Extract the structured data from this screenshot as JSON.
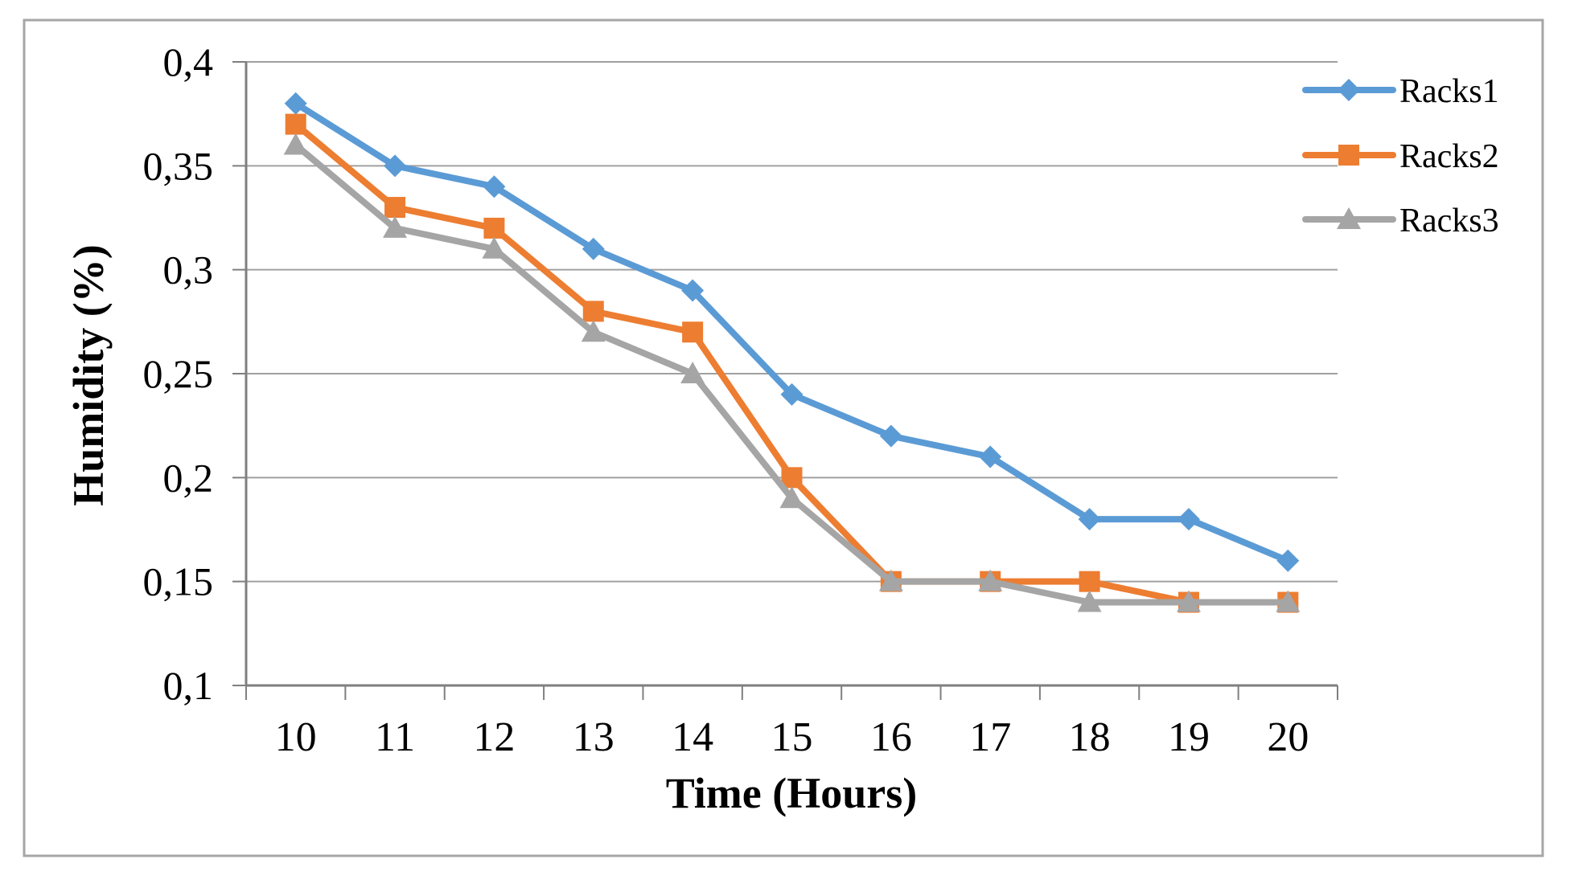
{
  "page": {
    "background": "#ffffff",
    "border_color": "#a6a6a6"
  },
  "chart_data": {
    "type": "line",
    "title": "",
    "xlabel": "Time (Hours)",
    "ylabel": "Humidity  (%)",
    "x_categories": [
      "10",
      "11",
      "12",
      "13",
      "14",
      "15",
      "16",
      "17",
      "18",
      "19",
      "20"
    ],
    "ylim": [
      0.1,
      0.4
    ],
    "ytick_values": [
      0.1,
      0.15,
      0.2,
      0.25,
      0.3,
      0.35,
      0.4
    ],
    "ytick_labels": [
      "0,1",
      "0,15",
      "0,2",
      "0,25",
      "0,3",
      "0,35",
      "0,4"
    ],
    "grid": true,
    "legend_position": "top-right",
    "series": [
      {
        "name": "Racks1",
        "marker": "diamond",
        "color": "#5B9BD5",
        "values": [
          0.38,
          0.35,
          0.34,
          0.31,
          0.29,
          0.24,
          0.22,
          0.21,
          0.18,
          0.18,
          0.16
        ]
      },
      {
        "name": "Racks2",
        "marker": "square",
        "color": "#ED7D31",
        "values": [
          0.37,
          0.33,
          0.32,
          0.28,
          0.27,
          0.2,
          0.15,
          0.15,
          0.15,
          0.14,
          0.14
        ]
      },
      {
        "name": "Racks3",
        "marker": "triangle",
        "color": "#A5A5A5",
        "values": [
          0.36,
          0.32,
          0.31,
          0.27,
          0.25,
          0.19,
          0.15,
          0.15,
          0.14,
          0.14,
          0.14
        ]
      }
    ],
    "colors": {
      "gridline": "#a0a0a0",
      "axis": "#7f7f7f",
      "text": "#000000"
    }
  }
}
